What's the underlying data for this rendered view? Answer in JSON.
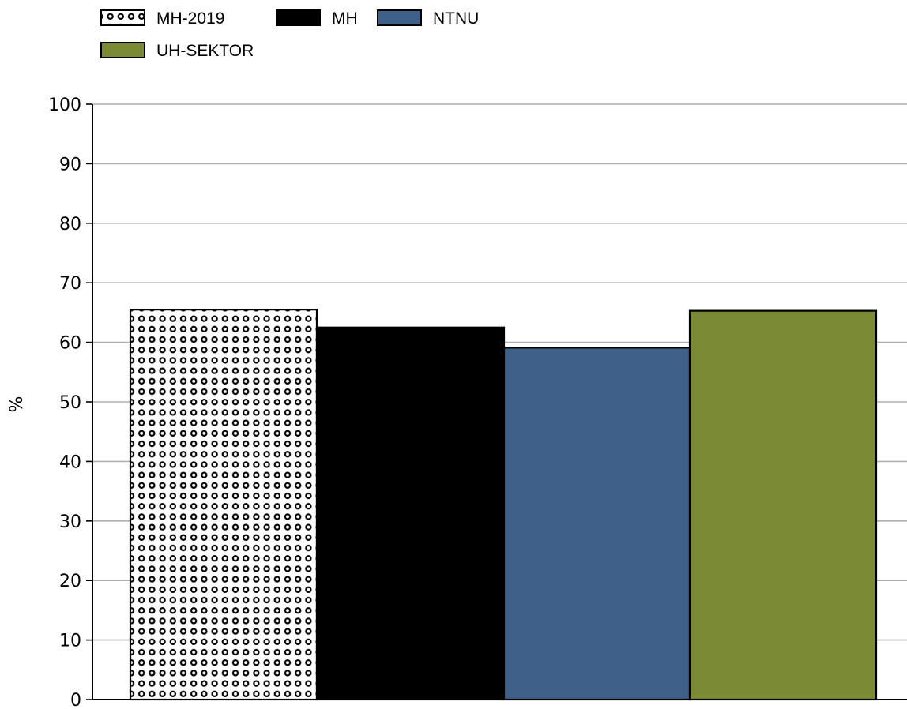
{
  "chart_data": {
    "type": "bar",
    "ylabel": "%",
    "ylim": [
      0,
      100
    ],
    "yticks": [
      0,
      10,
      20,
      30,
      40,
      50,
      60,
      70,
      80,
      90,
      100
    ],
    "grid": "horizontal",
    "legend_position": "top-left",
    "series": [
      {
        "name": "MH-2019",
        "value": 65.5,
        "fill": "pattern-dots",
        "color": "#ffffff"
      },
      {
        "name": "MH",
        "value": 62.5,
        "fill": "solid",
        "color": "#000000"
      },
      {
        "name": "NTNU",
        "value": 59.1,
        "fill": "solid",
        "color": "#3f6089"
      },
      {
        "name": "UH-SEKTOR",
        "value": 65.3,
        "fill": "solid",
        "color": "#7b8a35"
      }
    ]
  }
}
